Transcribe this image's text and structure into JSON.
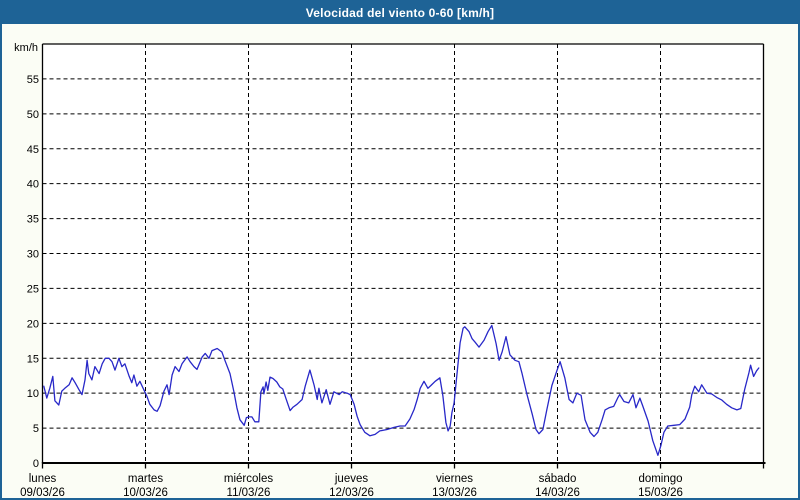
{
  "window": {
    "title": "Velocidad del viento 0-60 [km/h]"
  },
  "colors": {
    "titlebar_bg": "#1e6396",
    "titlebar_text": "#ffffff",
    "frame_border": "#1e6396",
    "outer_bg": "#fbfdf5",
    "plot_bg": "#ffffff",
    "grid": "#000000",
    "axis": "#000000",
    "label_text": "#000000",
    "line": "#2828c8"
  },
  "chart_data": {
    "type": "line",
    "title": "Velocidad del viento 0-60 [km/h]",
    "ylabel": "km/h",
    "ylim": [
      0,
      60
    ],
    "yticks": [
      0,
      5,
      10,
      15,
      20,
      25,
      30,
      35,
      40,
      45,
      50,
      55
    ],
    "grid": "dashed",
    "x_range_hours": [
      0,
      168
    ],
    "x_days": [
      {
        "name": "lunes",
        "date": "09/03/26"
      },
      {
        "name": "martes",
        "date": "10/03/26"
      },
      {
        "name": "miércoles",
        "date": "11/03/26"
      },
      {
        "name": "jueves",
        "date": "12/03/26"
      },
      {
        "name": "viernes",
        "date": "13/03/26"
      },
      {
        "name": "sábado",
        "date": "14/03/26"
      },
      {
        "name": "domingo",
        "date": "15/03/26"
      }
    ],
    "series": [
      {
        "name": "velocidad del viento",
        "color": "#2828c8",
        "points_hour_kmh": [
          [
            0.3,
            11.0
          ],
          [
            1.0,
            9.3
          ],
          [
            1.7,
            10.7
          ],
          [
            2.4,
            12.4
          ],
          [
            2.9,
            8.9
          ],
          [
            3.8,
            8.3
          ],
          [
            4.5,
            10.3
          ],
          [
            5.2,
            10.7
          ],
          [
            6.2,
            11.2
          ],
          [
            6.9,
            12.2
          ],
          [
            7.6,
            11.5
          ],
          [
            8.5,
            10.5
          ],
          [
            9.2,
            9.8
          ],
          [
            9.9,
            11.9
          ],
          [
            10.4,
            14.7
          ],
          [
            10.8,
            12.8
          ],
          [
            11.5,
            11.9
          ],
          [
            12.2,
            13.8
          ],
          [
            13.2,
            12.8
          ],
          [
            13.9,
            14.2
          ],
          [
            14.6,
            15.0
          ],
          [
            15.5,
            15.0
          ],
          [
            16.2,
            14.5
          ],
          [
            16.9,
            13.3
          ],
          [
            17.8,
            15.0
          ],
          [
            18.5,
            13.8
          ],
          [
            19.2,
            14.2
          ],
          [
            20.2,
            12.4
          ],
          [
            20.8,
            11.5
          ],
          [
            21.3,
            12.6
          ],
          [
            22.0,
            11.0
          ],
          [
            22.7,
            11.7
          ],
          [
            23.6,
            10.5
          ],
          [
            24.3,
            9.6
          ],
          [
            25.0,
            8.4
          ],
          [
            26.0,
            7.6
          ],
          [
            26.7,
            7.4
          ],
          [
            27.4,
            8.2
          ],
          [
            28.3,
            10.3
          ],
          [
            29.0,
            11.2
          ],
          [
            29.5,
            9.8
          ],
          [
            30.2,
            12.6
          ],
          [
            30.9,
            13.8
          ],
          [
            31.8,
            13.1
          ],
          [
            32.5,
            14.2
          ],
          [
            33.7,
            15.2
          ],
          [
            34.4,
            14.5
          ],
          [
            35.3,
            13.8
          ],
          [
            36.0,
            13.4
          ],
          [
            37.2,
            15.2
          ],
          [
            37.9,
            15.7
          ],
          [
            38.8,
            15.0
          ],
          [
            39.5,
            16.1
          ],
          [
            40.7,
            16.4
          ],
          [
            41.8,
            15.9
          ],
          [
            42.5,
            14.7
          ],
          [
            43.7,
            12.8
          ],
          [
            44.6,
            10.2
          ],
          [
            45.3,
            7.9
          ],
          [
            46.0,
            6.2
          ],
          [
            47.0,
            5.4
          ],
          [
            47.5,
            6.5
          ],
          [
            48.1,
            6.6
          ],
          [
            48.8,
            6.6
          ],
          [
            49.5,
            5.9
          ],
          [
            50.4,
            5.9
          ],
          [
            50.9,
            10.2
          ],
          [
            51.4,
            10.9
          ],
          [
            51.6,
            9.9
          ],
          [
            52.1,
            11.6
          ],
          [
            52.5,
            10.4
          ],
          [
            53.0,
            12.3
          ],
          [
            53.7,
            12.1
          ],
          [
            54.6,
            11.6
          ],
          [
            55.3,
            10.9
          ],
          [
            56.0,
            10.6
          ],
          [
            56.7,
            9.3
          ],
          [
            57.7,
            7.5
          ],
          [
            58.4,
            8.0
          ],
          [
            59.3,
            8.4
          ],
          [
            60.5,
            9.1
          ],
          [
            61.2,
            11.0
          ],
          [
            62.3,
            13.3
          ],
          [
            63.3,
            11.1
          ],
          [
            64.0,
            9.1
          ],
          [
            64.4,
            10.7
          ],
          [
            65.1,
            8.6
          ],
          [
            66.1,
            10.5
          ],
          [
            67.0,
            8.4
          ],
          [
            67.9,
            10.2
          ],
          [
            69.1,
            9.8
          ],
          [
            69.8,
            10.2
          ],
          [
            71.0,
            10.0
          ],
          [
            71.7,
            9.8
          ],
          [
            72.6,
            8.4
          ],
          [
            73.3,
            6.7
          ],
          [
            74.0,
            5.5
          ],
          [
            75.1,
            4.4
          ],
          [
            76.3,
            3.9
          ],
          [
            77.5,
            4.1
          ],
          [
            78.6,
            4.6
          ],
          [
            80.3,
            4.8
          ],
          [
            81.9,
            5.1
          ],
          [
            83.3,
            5.3
          ],
          [
            84.5,
            5.3
          ],
          [
            85.6,
            6.3
          ],
          [
            86.6,
            7.7
          ],
          [
            87.3,
            9.1
          ],
          [
            88.0,
            10.7
          ],
          [
            88.9,
            11.7
          ],
          [
            89.8,
            10.7
          ],
          [
            90.5,
            11.1
          ],
          [
            91.5,
            11.7
          ],
          [
            92.6,
            12.2
          ],
          [
            93.3,
            9.6
          ],
          [
            94.0,
            5.8
          ],
          [
            94.5,
            4.6
          ],
          [
            95.0,
            5.3
          ],
          [
            95.4,
            7.2
          ],
          [
            95.9,
            8.6
          ],
          [
            96.6,
            12.9
          ],
          [
            97.3,
            17.2
          ],
          [
            98.0,
            19.3
          ],
          [
            98.4,
            19.5
          ],
          [
            99.4,
            18.8
          ],
          [
            100.1,
            17.8
          ],
          [
            100.8,
            17.3
          ],
          [
            101.7,
            16.6
          ],
          [
            102.9,
            17.6
          ],
          [
            103.8,
            18.8
          ],
          [
            104.7,
            19.7
          ],
          [
            105.7,
            17.1
          ],
          [
            106.4,
            14.7
          ],
          [
            107.1,
            15.9
          ],
          [
            108.0,
            18.1
          ],
          [
            108.9,
            15.5
          ],
          [
            110.1,
            14.7
          ],
          [
            111.0,
            14.5
          ],
          [
            111.7,
            12.9
          ],
          [
            112.9,
            9.8
          ],
          [
            114.1,
            7.0
          ],
          [
            115.0,
            4.8
          ],
          [
            115.7,
            4.2
          ],
          [
            116.6,
            4.8
          ],
          [
            117.5,
            7.6
          ],
          [
            118.7,
            11.1
          ],
          [
            119.9,
            13.3
          ],
          [
            120.6,
            14.5
          ],
          [
            121.7,
            12.2
          ],
          [
            122.7,
            9.1
          ],
          [
            123.6,
            8.6
          ],
          [
            124.5,
            10.0
          ],
          [
            125.5,
            9.7
          ],
          [
            126.4,
            6.2
          ],
          [
            127.6,
            4.4
          ],
          [
            128.5,
            3.8
          ],
          [
            129.4,
            4.4
          ],
          [
            130.4,
            6.2
          ],
          [
            131.1,
            7.6
          ],
          [
            132.0,
            7.9
          ],
          [
            133.1,
            8.1
          ],
          [
            134.1,
            9.4
          ],
          [
            134.5,
            9.8
          ],
          [
            135.5,
            8.8
          ],
          [
            136.6,
            8.6
          ],
          [
            137.6,
            9.8
          ],
          [
            138.3,
            7.9
          ],
          [
            139.2,
            9.3
          ],
          [
            139.9,
            8.1
          ],
          [
            141.1,
            6.0
          ],
          [
            142.2,
            3.2
          ],
          [
            143.4,
            1.1
          ],
          [
            144.1,
            2.5
          ],
          [
            144.8,
            4.4
          ],
          [
            145.7,
            5.3
          ],
          [
            147.1,
            5.4
          ],
          [
            148.5,
            5.5
          ],
          [
            149.7,
            6.3
          ],
          [
            150.8,
            8.0
          ],
          [
            151.3,
            9.8
          ],
          [
            152.0,
            11.0
          ],
          [
            152.9,
            10.2
          ],
          [
            153.6,
            11.2
          ],
          [
            154.8,
            10.0
          ],
          [
            155.9,
            9.9
          ],
          [
            157.1,
            9.4
          ],
          [
            158.3,
            9.0
          ],
          [
            159.4,
            8.4
          ],
          [
            160.6,
            7.9
          ],
          [
            161.8,
            7.6
          ],
          [
            162.7,
            7.8
          ],
          [
            163.6,
            10.5
          ],
          [
            164.6,
            12.9
          ],
          [
            165.0,
            14.0
          ],
          [
            165.7,
            12.4
          ],
          [
            166.4,
            13.2
          ],
          [
            166.9,
            13.6
          ]
        ]
      }
    ]
  }
}
